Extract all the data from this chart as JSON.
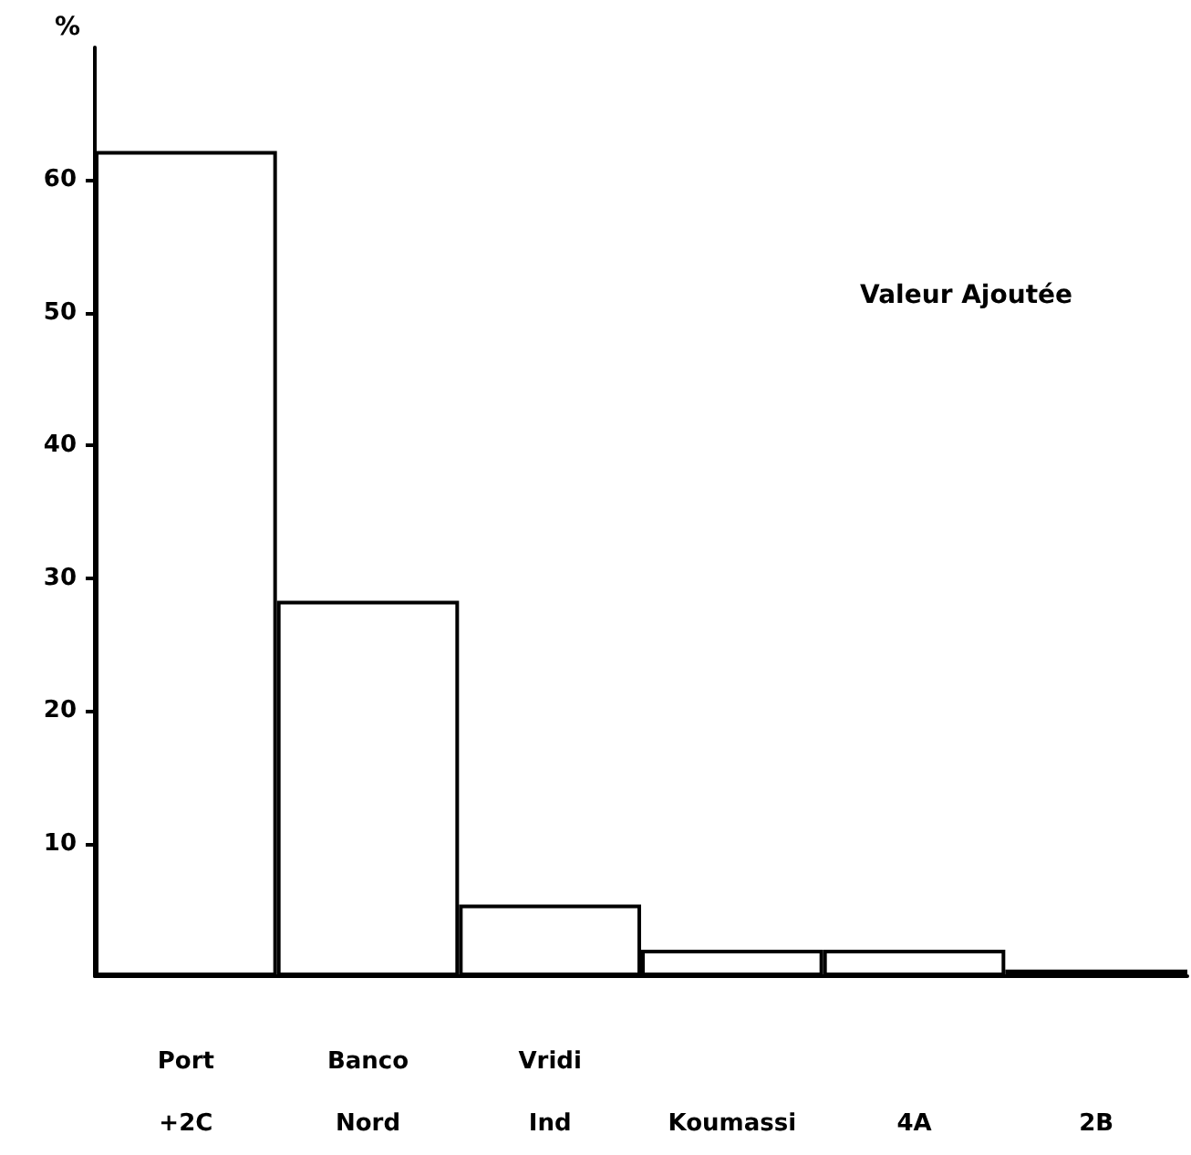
{
  "chart_data": {
    "type": "bar",
    "title": "Valeur Ajoutée",
    "ylabel": "%",
    "categories": [
      "Port\n+2C",
      "Banco\nNord",
      "Vridi\nInd",
      "Koumassi",
      "4A",
      "2B"
    ],
    "values": [
      62.2,
      28.3,
      5.4,
      2.0,
      2.0,
      0.5
    ],
    "color": "#ffffff",
    "ylim": [
      0,
      70
    ],
    "yticks": [
      10,
      20,
      30,
      40,
      50,
      60
    ],
    "grid": false
  }
}
